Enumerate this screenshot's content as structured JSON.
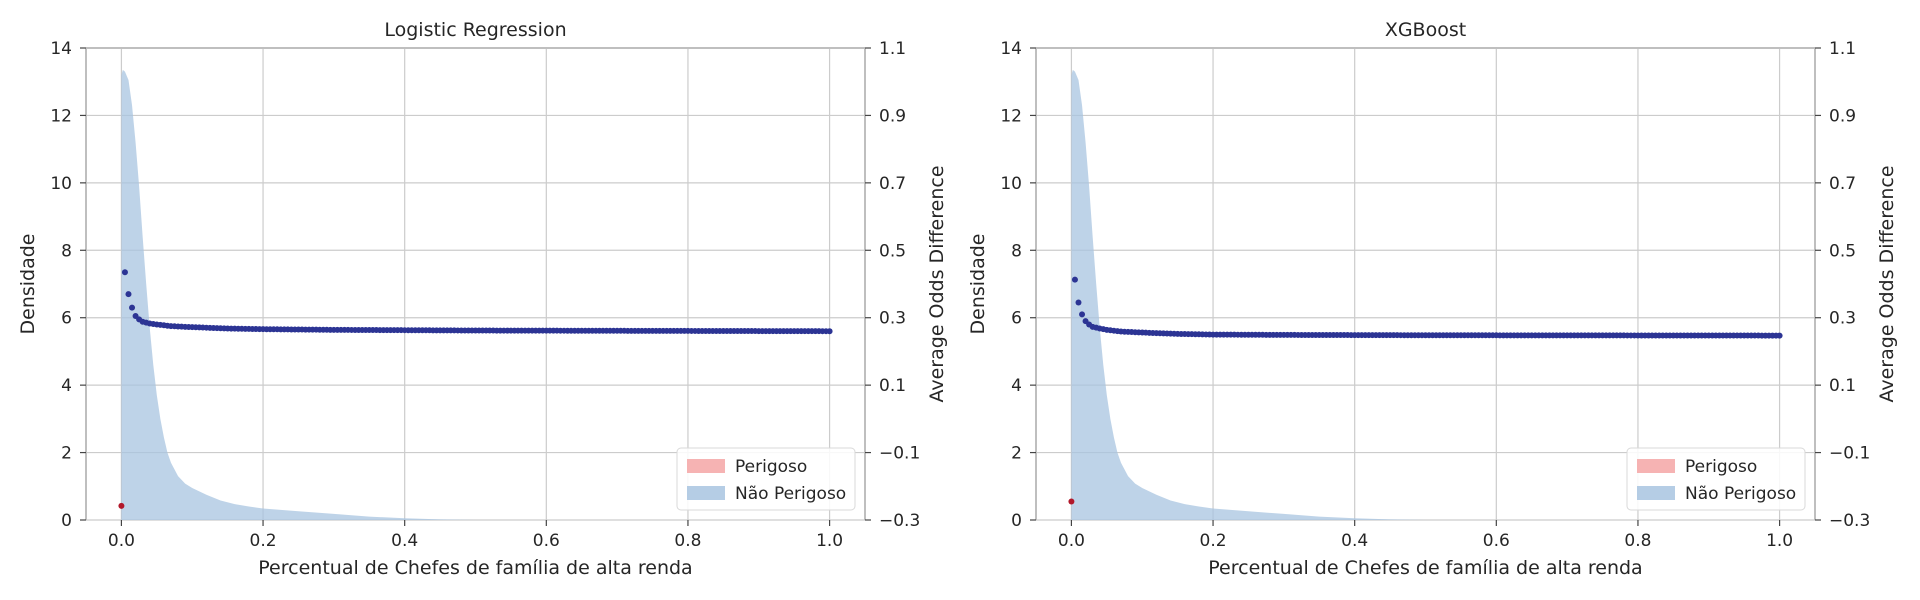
{
  "figure": {
    "background": "#ffffff",
    "colors": {
      "density_fill": "#a8c4e0",
      "perigoso_fill": "#f4a6a6",
      "marker_nao_perigoso": "#2c3494",
      "marker_perigoso": "#b2182b",
      "grid": "#cccccc",
      "axis": "#bfbfbf",
      "text": "#262626"
    }
  },
  "chart_data": [
    {
      "type": "area",
      "title": "Logistic Regression",
      "xlabel": "Percentual de Chefes de família de alta renda",
      "ylabel": "Densidade",
      "y2label": "Average Odds Difference",
      "xlim": [
        -0.05,
        1.05
      ],
      "ylim": [
        0,
        14
      ],
      "y2lim": [
        -0.3,
        1.1
      ],
      "xticks": [
        "0.0",
        "0.2",
        "0.4",
        "0.6",
        "0.8",
        "1.0"
      ],
      "yticks": [
        "0",
        "2",
        "4",
        "6",
        "8",
        "10",
        "12",
        "14"
      ],
      "y2ticks": [
        "−0.3",
        "−0.1",
        "0.1",
        "0.3",
        "0.5",
        "0.7",
        "0.9",
        "1.1"
      ],
      "grid": true,
      "legend": {
        "position": "lower-right",
        "entries": [
          "Perigoso",
          "Não Perigoso"
        ]
      },
      "density": {
        "name": "Não Perigoso",
        "x": [
          0.0,
          0.002,
          0.005,
          0.01,
          0.015,
          0.02,
          0.025,
          0.03,
          0.035,
          0.04,
          0.045,
          0.05,
          0.055,
          0.06,
          0.065,
          0.07,
          0.08,
          0.09,
          0.1,
          0.12,
          0.14,
          0.16,
          0.18,
          0.2,
          0.25,
          0.3,
          0.35,
          0.4,
          0.45,
          0.5
        ],
        "y": [
          13.2,
          13.35,
          13.3,
          13.05,
          12.3,
          11.2,
          9.9,
          8.4,
          7.0,
          5.7,
          4.6,
          3.7,
          3.0,
          2.45,
          2.0,
          1.7,
          1.3,
          1.08,
          0.95,
          0.75,
          0.58,
          0.47,
          0.4,
          0.34,
          0.26,
          0.18,
          0.1,
          0.05,
          0.02,
          0.0
        ]
      },
      "odds_difference": {
        "name": "Não Perigoso",
        "x_start": 0.005,
        "x_end": 1.0,
        "count": 200,
        "anchors_x": [
          0.005,
          0.01,
          0.015,
          0.02,
          0.025,
          0.03,
          0.04,
          0.05,
          0.07,
          0.1,
          0.15,
          0.2,
          0.3,
          0.5,
          1.0
        ],
        "anchors_y": [
          0.435,
          0.37,
          0.33,
          0.305,
          0.295,
          0.288,
          0.283,
          0.28,
          0.275,
          0.272,
          0.268,
          0.266,
          0.264,
          0.262,
          0.26
        ]
      },
      "odds_difference_perigoso": {
        "name": "Perigoso",
        "x": [
          0.0
        ],
        "y": [
          -0.258
        ]
      }
    },
    {
      "type": "area",
      "title": "XGBoost",
      "xlabel": "Percentual de Chefes de família de alta renda",
      "ylabel": "Densidade",
      "y2label": "Average Odds Difference",
      "xlim": [
        -0.05,
        1.05
      ],
      "ylim": [
        0,
        14
      ],
      "y2lim": [
        -0.3,
        1.1
      ],
      "xticks": [
        "0.0",
        "0.2",
        "0.4",
        "0.6",
        "0.8",
        "1.0"
      ],
      "yticks": [
        "0",
        "2",
        "4",
        "6",
        "8",
        "10",
        "12",
        "14"
      ],
      "y2ticks": [
        "−0.3",
        "−0.1",
        "0.1",
        "0.3",
        "0.5",
        "0.7",
        "0.9",
        "1.1"
      ],
      "grid": true,
      "legend": {
        "position": "lower-right",
        "entries": [
          "Perigoso",
          "Não Perigoso"
        ]
      },
      "density": {
        "name": "Não Perigoso",
        "x": [
          0.0,
          0.002,
          0.005,
          0.01,
          0.015,
          0.02,
          0.025,
          0.03,
          0.035,
          0.04,
          0.045,
          0.05,
          0.055,
          0.06,
          0.065,
          0.07,
          0.08,
          0.09,
          0.1,
          0.12,
          0.14,
          0.16,
          0.18,
          0.2,
          0.25,
          0.3,
          0.35,
          0.4,
          0.45,
          0.5
        ],
        "y": [
          13.2,
          13.35,
          13.3,
          13.05,
          12.3,
          11.2,
          9.9,
          8.4,
          7.0,
          5.7,
          4.6,
          3.7,
          3.0,
          2.45,
          2.0,
          1.7,
          1.3,
          1.08,
          0.95,
          0.75,
          0.58,
          0.47,
          0.4,
          0.34,
          0.26,
          0.18,
          0.1,
          0.05,
          0.02,
          0.0
        ]
      },
      "odds_difference": {
        "name": "Não Perigoso",
        "x_start": 0.005,
        "x_end": 1.0,
        "count": 200,
        "anchors_x": [
          0.005,
          0.01,
          0.015,
          0.02,
          0.025,
          0.03,
          0.04,
          0.05,
          0.07,
          0.1,
          0.15,
          0.2,
          0.3,
          0.5,
          1.0
        ],
        "anchors_y": [
          0.413,
          0.345,
          0.31,
          0.29,
          0.28,
          0.273,
          0.268,
          0.264,
          0.259,
          0.256,
          0.252,
          0.25,
          0.249,
          0.248,
          0.247
        ]
      },
      "odds_difference_perigoso": {
        "name": "Perigoso",
        "x": [
          0.0
        ],
        "y": [
          -0.245
        ]
      }
    }
  ]
}
